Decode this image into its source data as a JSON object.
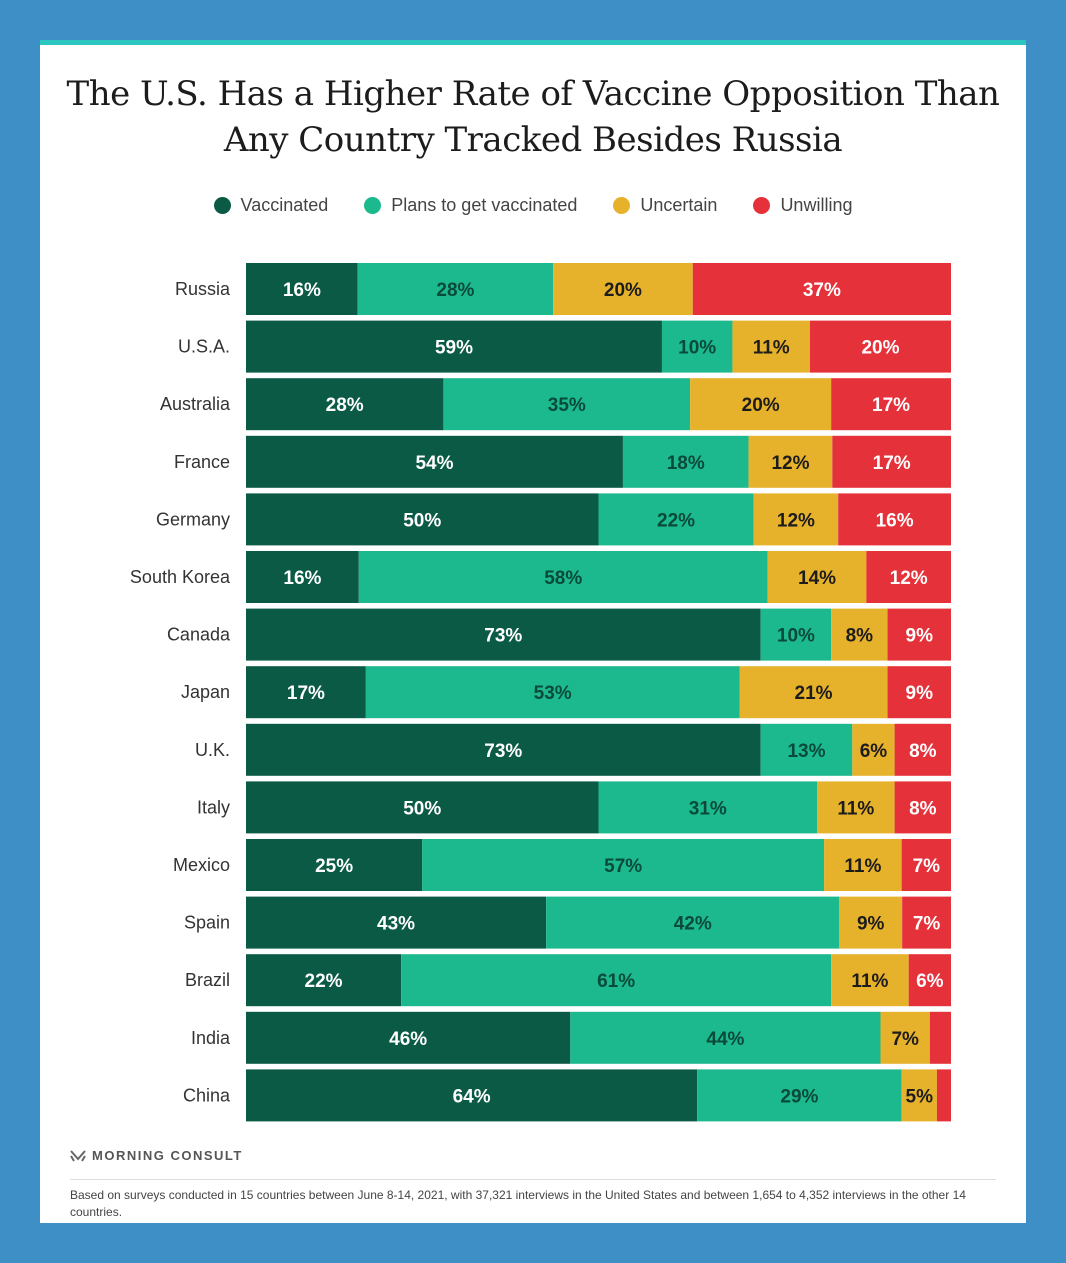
{
  "chart_data": {
    "type": "bar",
    "orientation": "horizontal",
    "stacked": true,
    "normalized": true,
    "title": "The U.S. Has a Higher Rate of Vaccine Opposition Than Any Country Tracked Besides Russia",
    "title_lines": [
      "The U.S. Has a Higher Rate of Vaccine Opposition Than",
      "Any Country Tracked Besides Russia"
    ],
    "xlabel": "",
    "ylabel": "",
    "legend_position": "top",
    "grid": false,
    "categories": [
      "Russia",
      "U.S.A.",
      "Australia",
      "France",
      "Germany",
      "South Korea",
      "Canada",
      "Japan",
      "U.K.",
      "Italy",
      "Mexico",
      "Spain",
      "Brazil",
      "India",
      "China"
    ],
    "series": [
      {
        "name": "Vaccinated",
        "color": "#0a5a45",
        "values": [
          16,
          59,
          28,
          54,
          50,
          16,
          73,
          17,
          73,
          50,
          25,
          43,
          22,
          46,
          64
        ]
      },
      {
        "name": "Plans to get vaccinated",
        "color": "#1cb88e",
        "values": [
          28,
          10,
          35,
          18,
          22,
          58,
          10,
          53,
          13,
          31,
          57,
          42,
          61,
          44,
          29
        ]
      },
      {
        "name": "Uncertain",
        "color": "#e7b22b",
        "values": [
          20,
          11,
          20,
          12,
          12,
          14,
          8,
          21,
          6,
          11,
          11,
          9,
          11,
          7,
          5
        ]
      },
      {
        "name": "Unwilling",
        "color": "#e5313a",
        "values": [
          37,
          20,
          17,
          17,
          16,
          12,
          9,
          9,
          8,
          8,
          7,
          7,
          6,
          3,
          2
        ]
      }
    ],
    "labels": [
      [
        "16%",
        "28%",
        "20%",
        "37%"
      ],
      [
        "59%",
        "10%",
        "11%",
        "20%"
      ],
      [
        "28%",
        "35%",
        "20%",
        "17%"
      ],
      [
        "54%",
        "18%",
        "12%",
        "17%"
      ],
      [
        "50%",
        "22%",
        "12%",
        "16%"
      ],
      [
        "16%",
        "58%",
        "14%",
        "12%"
      ],
      [
        "73%",
        "10%",
        "8%",
        "9%"
      ],
      [
        "17%",
        "53%",
        "21%",
        "9%"
      ],
      [
        "73%",
        "13%",
        "6%",
        "8%"
      ],
      [
        "50%",
        "31%",
        "11%",
        "8%"
      ],
      [
        "25%",
        "57%",
        "11%",
        "7%"
      ],
      [
        "43%",
        "42%",
        "9%",
        "7%"
      ],
      [
        "22%",
        "61%",
        "11%",
        "6%"
      ],
      [
        "46%",
        "44%",
        "7%",
        ""
      ],
      [
        "64%",
        "29%",
        "5%",
        ""
      ]
    ]
  },
  "brand": {
    "name": "MORNING CONSULT"
  },
  "footnote": "Based on surveys conducted in 15 countries between June 8-14, 2021, with 37,321 interviews in the United States and between 1,654 to 4,352 interviews in the other 14 countries."
}
